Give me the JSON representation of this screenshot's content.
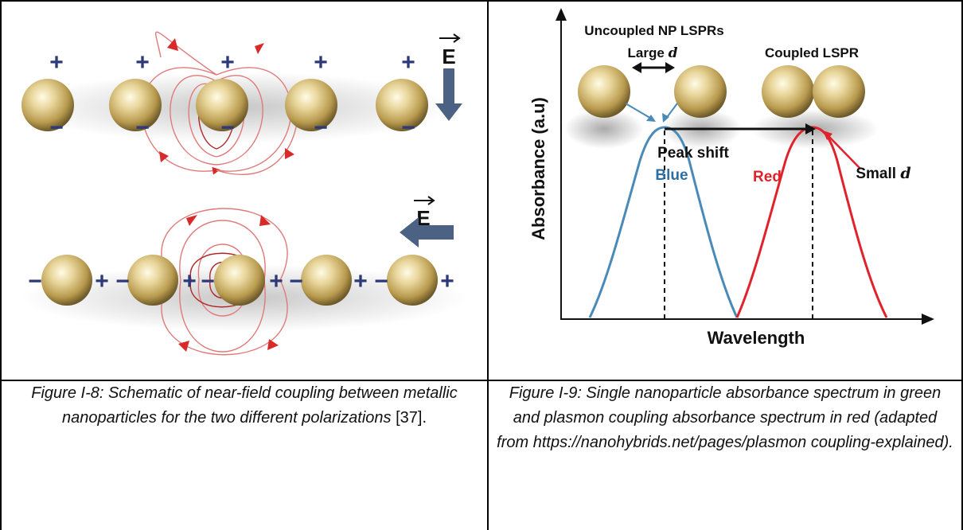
{
  "figure_left": {
    "e_label_top": "E",
    "e_label_bottom": "E",
    "plus": "+",
    "minus": "−"
  },
  "figure_right": {
    "label_uncoupled": "Uncoupled NP LSPRs",
    "label_large_prefix": "Large ",
    "label_large_d": "d",
    "label_coupled": "Coupled LSPR",
    "label_peak_shift": "Peak shift",
    "label_blue": "Blue",
    "label_red": "Red",
    "label_small_prefix": "Small ",
    "label_small_d": "d",
    "ylabel": "Absorbance (a.u)",
    "xlabel": "Wavelength",
    "colors": {
      "blue": "#4a8ab8",
      "red": "#e0232b"
    }
  },
  "captions": {
    "left_text": "Figure I-8: Schematic of near-field coupling between metallic nanoparticles for the two different polarizations",
    "left_ref": "[37].",
    "right_text": "Figure I-9: Single nanoparticle absorbance spectrum in green and plasmon coupling absorbance spectrum in red (adapted from https://nanohybrids.net/pages/plasmon coupling-explained)."
  }
}
